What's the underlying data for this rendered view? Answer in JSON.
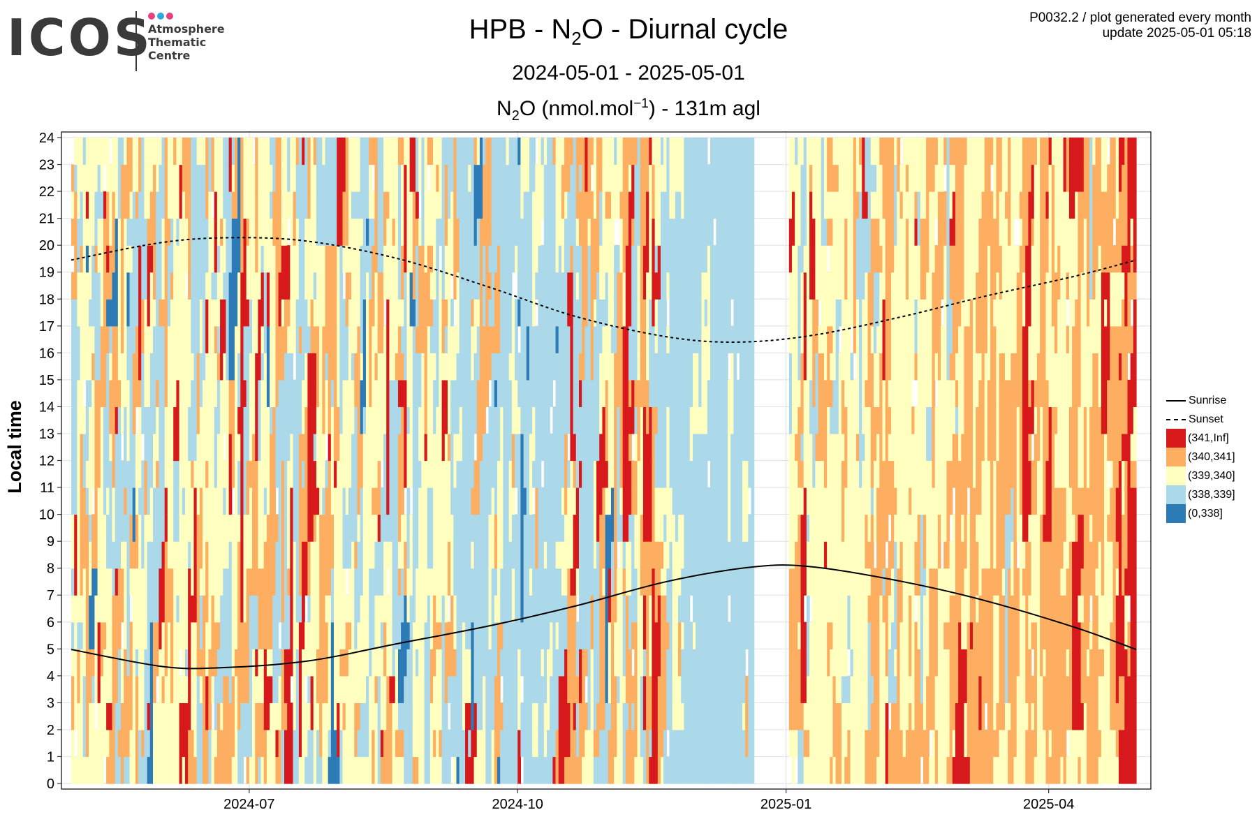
{
  "logo": {
    "word": "ICOS",
    "line1": "Atmosphere",
    "line2": "Thematic",
    "line3": "Centre",
    "dot_colors": [
      "#e8417d",
      "#2fa9e0",
      "#e8417d"
    ]
  },
  "header": {
    "title_pre": "HPB - N",
    "title_sub": "2",
    "title_post": "O - Diurnal cycle",
    "period": "2024-05-01 - 2025-05-01",
    "subtitle_pre": "N",
    "subtitle_sub": "2",
    "subtitle_mid": "O (nmol.mol",
    "subtitle_sup": "−1",
    "subtitle_post": ") - 131m agl",
    "meta_line1": "P0032.2 / plot generated every month",
    "meta_line2": "update  2025-05-01 05:18"
  },
  "chart_data": {
    "type": "heatmap",
    "xlabel": "",
    "ylabel": "Local time",
    "x_range": [
      "2024-05-01",
      "2025-05-01"
    ],
    "ylim": [
      0,
      24
    ],
    "y_ticks": [
      0,
      1,
      2,
      3,
      4,
      5,
      6,
      7,
      8,
      9,
      10,
      11,
      12,
      13,
      14,
      15,
      16,
      17,
      18,
      19,
      20,
      21,
      22,
      23,
      24
    ],
    "x_ticks": [
      {
        "date": "2024-07-01",
        "label": "2024-07"
      },
      {
        "date": "2024-10-01",
        "label": "2024-10"
      },
      {
        "date": "2025-01-01",
        "label": "2025-01"
      },
      {
        "date": "2025-04-01",
        "label": "2025-04"
      }
    ],
    "grid": true,
    "legend_position": "right",
    "classes": [
      {
        "label": "(341,Inf]",
        "color": "#d7191c"
      },
      {
        "label": "(340,341]",
        "color": "#fdae61"
      },
      {
        "label": "(339,340]",
        "color": "#ffffbf"
      },
      {
        "label": "(338,339]",
        "color": "#abd9e9"
      },
      {
        "label": "(0,338]",
        "color": "#2c7bb6"
      }
    ],
    "gaps": [
      {
        "from": "2024-12-21",
        "to": "2025-01-02"
      }
    ],
    "period_mix": [
      {
        "from": "2024-05-01",
        "to": "2024-09-10",
        "weights": [
          0.07,
          0.26,
          0.39,
          0.26,
          0.02
        ]
      },
      {
        "from": "2024-09-10",
        "to": "2024-10-15",
        "weights": [
          0.02,
          0.06,
          0.14,
          0.72,
          0.06
        ]
      },
      {
        "from": "2024-10-15",
        "to": "2024-11-20",
        "weights": [
          0.12,
          0.32,
          0.3,
          0.25,
          0.01
        ]
      },
      {
        "from": "2024-11-20",
        "to": "2024-12-21",
        "weights": [
          0.0,
          0.02,
          0.06,
          0.92,
          0.0
        ]
      },
      {
        "from": "2025-01-02",
        "to": "2025-02-20",
        "weights": [
          0.03,
          0.25,
          0.6,
          0.12,
          0.0
        ]
      },
      {
        "from": "2025-02-20",
        "to": "2025-04-24",
        "weights": [
          0.03,
          0.55,
          0.4,
          0.02,
          0.0
        ]
      },
      {
        "from": "2025-04-24",
        "to": "2025-05-01",
        "weights": [
          0.65,
          0.28,
          0.07,
          0.0,
          0.0
        ]
      }
    ],
    "series": [
      {
        "name": "Sunrise",
        "style": "solid",
        "points": [
          [
            "2024-05-01",
            4.98
          ],
          [
            "2024-06-01",
            4.35
          ],
          [
            "2024-06-21",
            4.3
          ],
          [
            "2024-07-21",
            4.55
          ],
          [
            "2024-08-21",
            5.2
          ],
          [
            "2024-09-21",
            5.85
          ],
          [
            "2024-10-21",
            6.6
          ],
          [
            "2024-11-21",
            7.5
          ],
          [
            "2024-12-21",
            8.05
          ],
          [
            "2025-01-10",
            8.05
          ],
          [
            "2025-02-10",
            7.5
          ],
          [
            "2025-03-10",
            6.8
          ],
          [
            "2025-04-10",
            5.8
          ],
          [
            "2025-05-01",
            4.98
          ]
        ]
      },
      {
        "name": "Sunset",
        "style": "dashed",
        "points": [
          [
            "2024-05-01",
            19.45
          ],
          [
            "2024-06-01",
            20.1
          ],
          [
            "2024-06-25",
            20.28
          ],
          [
            "2024-07-21",
            20.15
          ],
          [
            "2024-08-21",
            19.5
          ],
          [
            "2024-09-21",
            18.45
          ],
          [
            "2024-10-21",
            17.35
          ],
          [
            "2024-11-21",
            16.6
          ],
          [
            "2024-12-15",
            16.4
          ],
          [
            "2025-01-10",
            16.65
          ],
          [
            "2025-02-10",
            17.35
          ],
          [
            "2025-03-10",
            18.1
          ],
          [
            "2025-04-10",
            18.85
          ],
          [
            "2025-05-01",
            19.45
          ]
        ]
      }
    ]
  }
}
